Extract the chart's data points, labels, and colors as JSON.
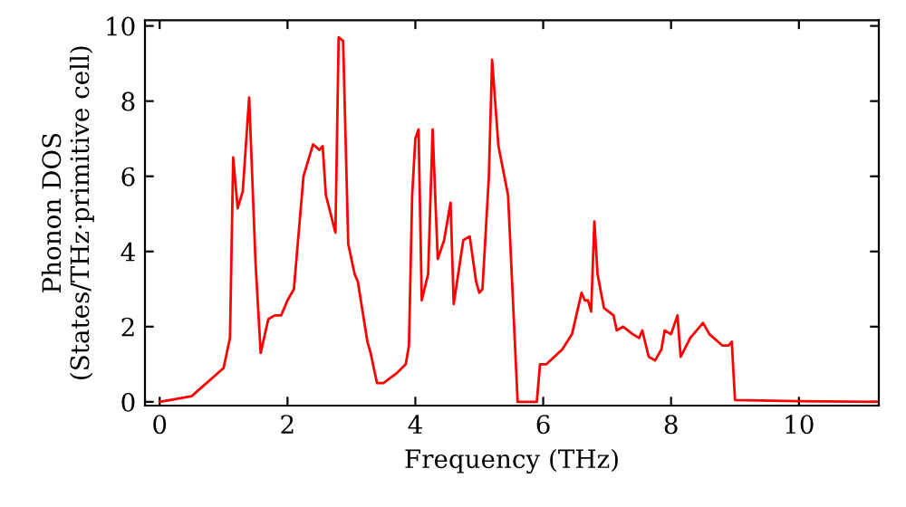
{
  "chart_data": {
    "type": "line",
    "xlabel": "Frequency (THz)",
    "ylabel": "Phonon DOS\n(States/THz·primitive cell)",
    "xlim": [
      -0.23,
      11.25
    ],
    "ylim": [
      -0.1,
      10.15
    ],
    "xticks": [
      0,
      2,
      4,
      6,
      8,
      10
    ],
    "yticks": [
      0,
      2,
      4,
      6,
      8,
      10
    ],
    "grid": false,
    "legend": false,
    "marker": "none",
    "line_style": "solid",
    "series": [
      {
        "color": "#ff0000",
        "x": [
          0,
          0.5,
          1.0,
          1.1,
          1.15,
          1.22,
          1.3,
          1.4,
          1.5,
          1.58,
          1.7,
          1.8,
          1.9,
          2.0,
          2.1,
          2.25,
          2.4,
          2.5,
          2.55,
          2.6,
          2.75,
          2.8,
          2.87,
          2.95,
          3.05,
          3.1,
          3.25,
          3.3,
          3.4,
          3.5,
          3.7,
          3.85,
          3.9,
          3.95,
          4.0,
          4.05,
          4.1,
          4.2,
          4.27,
          4.35,
          4.45,
          4.55,
          4.6,
          4.75,
          4.85,
          4.95,
          5.0,
          5.05,
          5.15,
          5.2,
          5.3,
          5.45,
          5.6,
          5.9,
          5.95,
          6.05,
          6.3,
          6.45,
          6.6,
          6.65,
          6.7,
          6.75,
          6.8,
          6.85,
          6.95,
          7.1,
          7.15,
          7.25,
          7.4,
          7.5,
          7.55,
          7.65,
          7.75,
          7.85,
          7.9,
          8.0,
          8.1,
          8.15,
          8.3,
          8.5,
          8.6,
          8.8,
          8.9,
          8.95,
          9.0,
          10,
          11.25
        ],
        "values": [
          0,
          0.15,
          0.9,
          1.7,
          6.5,
          5.15,
          5.6,
          8.1,
          3.7,
          1.3,
          2.2,
          2.3,
          2.3,
          2.7,
          3.0,
          6.0,
          6.85,
          6.7,
          6.8,
          5.5,
          4.5,
          9.7,
          9.6,
          4.2,
          3.4,
          3.2,
          1.6,
          1.3,
          0.5,
          0.5,
          0.75,
          1.0,
          1.5,
          5.5,
          7.0,
          7.25,
          2.7,
          3.4,
          7.25,
          3.8,
          4.3,
          5.3,
          2.6,
          4.3,
          4.4,
          3.2,
          2.9,
          3.0,
          6.0,
          9.1,
          6.8,
          5.5,
          0,
          0,
          1.0,
          1.0,
          1.4,
          1.8,
          2.9,
          2.7,
          2.7,
          2.4,
          4.8,
          3.4,
          2.5,
          2.3,
          1.9,
          2.0,
          1.8,
          1.7,
          1.9,
          1.2,
          1.1,
          1.4,
          1.9,
          1.8,
          2.3,
          1.2,
          1.7,
          2.1,
          1.8,
          1.5,
          1.5,
          1.6,
          0.05,
          0.02,
          0
        ]
      }
    ]
  }
}
